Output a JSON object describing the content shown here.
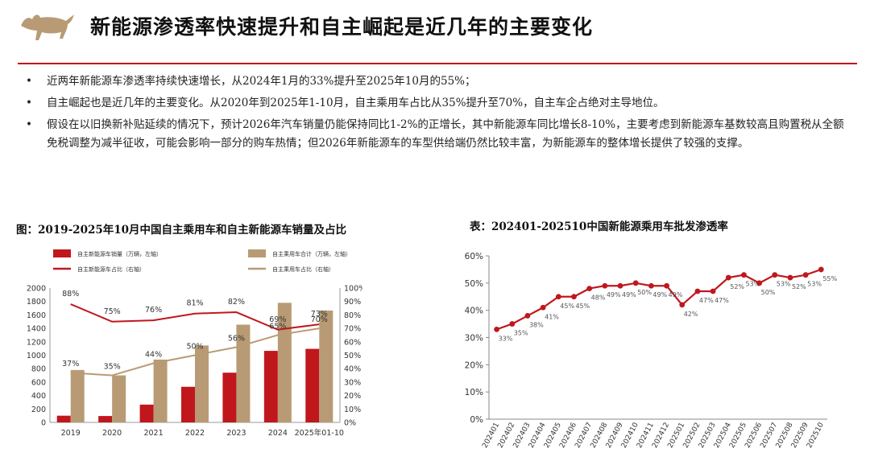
{
  "header": {
    "title": "新能源渗透率快速提升和自主崛起是近几年的主要变化"
  },
  "bullets": [
    "近两年新能源车渗透率持续快速增长，从2024年1月的33%提升至2025年10月的55%；",
    "自主崛起也是近几年的主要变化。从2020年到2025年1-10月，自主乘用车占比从35%提升至70%，自主车企占绝对主导地位。",
    "假设在以旧换新补贴延续的情况下，预计2026年汽车销量仍能保持同比1-2%的正增长，其中新能源车同比增长8-10%，主要考虑到新能源车基数较高且购置税从全额免税调整为减半征收，可能会影响一部分的购车热情；但2026年新能源车的车型供给端仍然比较丰富，为新能源车的整体增长提供了较强的支撑。"
  ],
  "colors": {
    "accent": "#c0171d",
    "tan": "#b89b74"
  },
  "chart_data": [
    {
      "type": "bar",
      "title": "图：2019-2025年10月中国自主乘用车和自主新能源车销量及占比",
      "categories": [
        "2019",
        "2020",
        "2021",
        "2022",
        "2023",
        "2024",
        "2025年01-10"
      ],
      "y_left_ticks": [
        "0",
        "200",
        "400",
        "600",
        "800",
        "1000",
        "1200",
        "1400",
        "1600",
        "1800",
        "2000"
      ],
      "y_right_ticks": [
        "0%",
        "10%",
        "20%",
        "30%",
        "40%",
        "50%",
        "60%",
        "70%",
        "80%",
        "90%",
        "100%"
      ],
      "ylim_left": [
        0,
        2000
      ],
      "ylim_right": [
        0,
        100
      ],
      "series": [
        {
          "name": "自主新能源车销量（万辆，左轴）",
          "type": "bar",
          "axis": "left",
          "color": "#c0171d",
          "values": [
            100,
            95,
            265,
            530,
            740,
            1065,
            1095
          ]
        },
        {
          "name": "自主乘用车合计（万辆，左轴）",
          "type": "bar",
          "axis": "left",
          "color": "#b89b74",
          "values": [
            780,
            700,
            935,
            1145,
            1455,
            1780,
            1665
          ]
        },
        {
          "name": "自主新能源车占比（右轴）",
          "type": "line",
          "axis": "right",
          "color": "#c0171d",
          "values": [
            88,
            75,
            76,
            81,
            82,
            69,
            73
          ],
          "labels": [
            "88%",
            "75%",
            "76%",
            "81%",
            "82%",
            "69%",
            "73%"
          ]
        },
        {
          "name": "自主乘用车占比（右轴）",
          "type": "line",
          "axis": "right",
          "color": "#b89b74",
          "values": [
            37,
            35,
            44,
            50,
            56,
            65,
            70
          ],
          "labels": [
            "37%",
            "35%",
            "44%",
            "50%",
            "56%",
            "65%",
            "70%"
          ]
        }
      ],
      "legend": "top"
    },
    {
      "type": "line",
      "title": "表：202401-202510中国新能源乘用车批发渗透率",
      "categories": [
        "202401",
        "202402",
        "202403",
        "202404",
        "202405",
        "202406",
        "202407",
        "202408",
        "202409",
        "202410",
        "202411",
        "202412",
        "202501",
        "202502",
        "202503",
        "202504",
        "202505",
        "202506",
        "202507",
        "202508",
        "202509",
        "202510"
      ],
      "y_ticks": [
        "0%",
        "10%",
        "20%",
        "30%",
        "40%",
        "50%",
        "60%"
      ],
      "ylim": [
        0,
        60
      ],
      "series": [
        {
          "name": "",
          "color": "#c0171d",
          "values": [
            33,
            35,
            38,
            41,
            45,
            45,
            48,
            49,
            49,
            50,
            49,
            49,
            42,
            47,
            47,
            52,
            53,
            50,
            53,
            52,
            53,
            55
          ],
          "labels": [
            "33%",
            "35%",
            "38%",
            "41%",
            "45%",
            "45%",
            "48%",
            "49%",
            "49%",
            "50%",
            "49%",
            "49%",
            "42%",
            "47%",
            "47%",
            "52%",
            "53%",
            "50%",
            "53%",
            "52%",
            "53%",
            "55%"
          ]
        }
      ]
    }
  ]
}
